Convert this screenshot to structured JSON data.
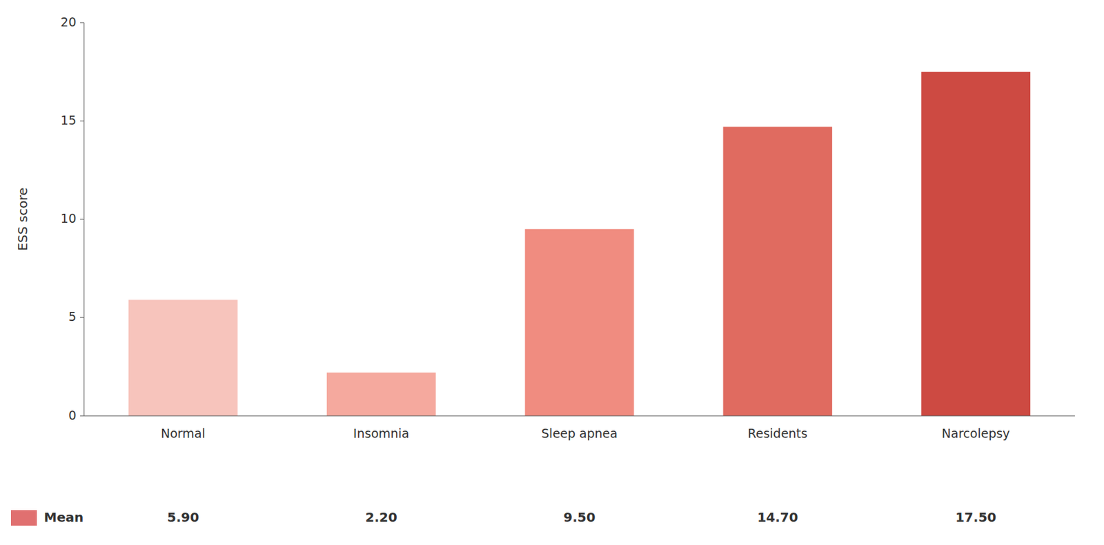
{
  "chart_data": {
    "type": "bar",
    "categories": [
      "Normal",
      "Insomnia",
      "Sleep apnea",
      "Residents",
      "Narcolepsy"
    ],
    "series": [
      {
        "name": "Mean",
        "color": "#e07070",
        "colors": [
          "#f7c4bc",
          "#f5a99e",
          "#f08c80",
          "#e06b60",
          "#cd4a42"
        ],
        "values": [
          5.9,
          2.2,
          9.5,
          14.7,
          17.5
        ],
        "value_labels": [
          "5.90",
          "2.20",
          "9.50",
          "14.70",
          "17.50"
        ]
      }
    ],
    "ylabel": "ESS score",
    "ylim": [
      0,
      20
    ],
    "yticks": [
      0,
      5,
      10,
      15,
      20
    ],
    "data_labels": true,
    "legend": "lower left",
    "grid": false
  }
}
